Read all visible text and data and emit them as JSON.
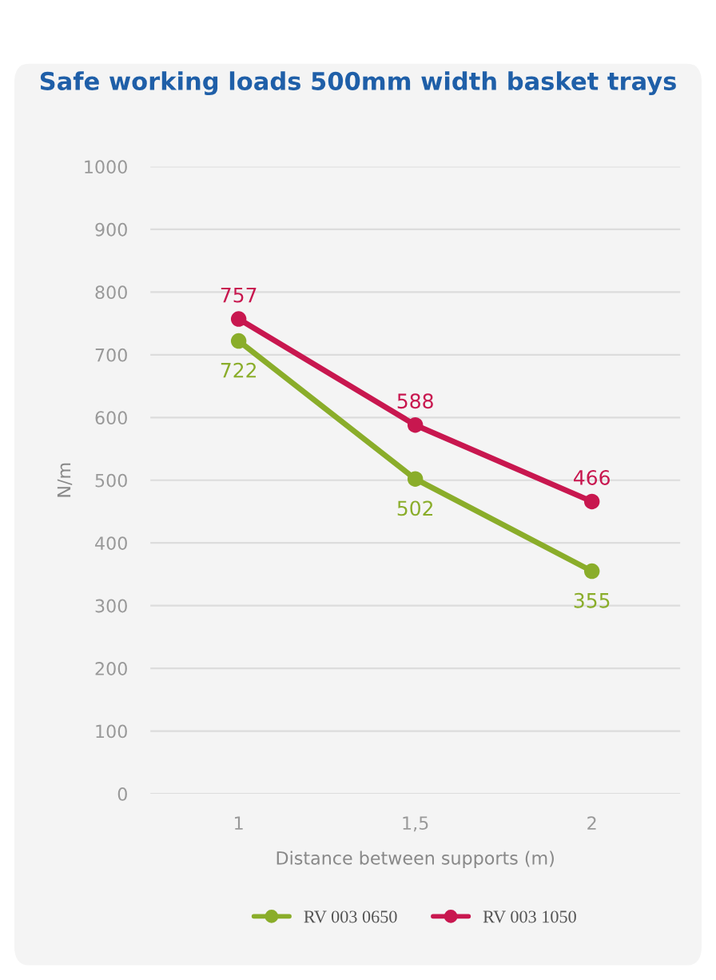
{
  "chart_data": {
    "type": "line",
    "title": "Safe working loads 500mm width basket trays",
    "xlabel": "Distance between supports (m)",
    "ylabel": "N/m",
    "categories": [
      "1",
      "1,5",
      "2"
    ],
    "series": [
      {
        "name": "RV 003 0650",
        "color": "#8aad2a",
        "values": [
          722,
          502,
          355
        ]
      },
      {
        "name": "RV 003 1050",
        "color": "#c8174f",
        "values": [
          757,
          588,
          466
        ]
      }
    ],
    "ylim": [
      0,
      1000
    ],
    "yticks": [
      0,
      100,
      200,
      300,
      400,
      500,
      600,
      700,
      800,
      900,
      1000
    ],
    "grid": "y",
    "legend": "bottom",
    "marker": "circle",
    "line_style": "solid",
    "data_labels": true
  }
}
